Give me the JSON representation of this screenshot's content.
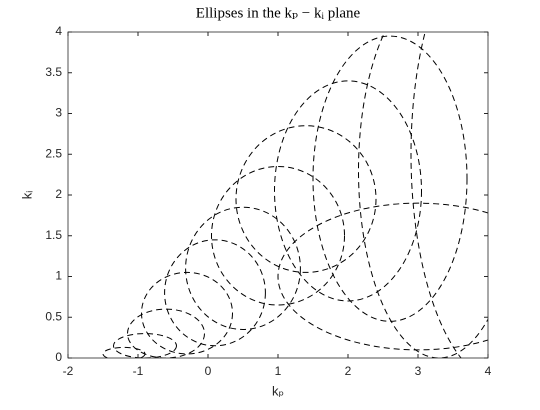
{
  "chart_data": {
    "type": "ellipse",
    "title": "Ellipses in the kₚ − kᵢ plane",
    "x_label": "kₚ",
    "y_label": "kᵢ",
    "xlim": [
      -2,
      4
    ],
    "xticks": [
      -2,
      -1,
      0,
      1,
      2,
      3,
      4
    ],
    "ylim": [
      0,
      4
    ],
    "yticks": [
      0,
      0.5,
      1,
      1.5,
      2,
      2.5,
      3,
      3.5,
      4
    ],
    "color": "#000000",
    "dashed": true,
    "grid": false,
    "ellipses": [
      {
        "cx": -1.2,
        "cy": 0.05,
        "rx": 0.3,
        "ry": 0.08
      },
      {
        "cx": -0.9,
        "cy": 0.15,
        "rx": 0.45,
        "ry": 0.15
      },
      {
        "cx": -0.6,
        "cy": 0.3,
        "rx": 0.55,
        "ry": 0.3
      },
      {
        "cx": -0.3,
        "cy": 0.55,
        "rx": 0.65,
        "ry": 0.5
      },
      {
        "cx": 0.1,
        "cy": 0.8,
        "rx": 0.72,
        "ry": 0.65
      },
      {
        "cx": 0.5,
        "cy": 1.1,
        "rx": 0.82,
        "ry": 0.75
      },
      {
        "cx": 1.0,
        "cy": 1.5,
        "rx": 0.95,
        "ry": 0.85
      },
      {
        "cx": 1.4,
        "cy": 1.95,
        "rx": 1.0,
        "ry": 0.9
      },
      {
        "cx": 2.0,
        "cy": 2.05,
        "rx": 1.05,
        "ry": 1.35
      },
      {
        "cx": 2.6,
        "cy": 2.2,
        "rx": 1.1,
        "ry": 1.75
      },
      {
        "cx": 3.3,
        "cy": 2.3,
        "rx": 1.15,
        "ry": 2.3
      },
      {
        "cx": 4.2,
        "cy": 2.5,
        "rx": 1.3,
        "ry": 2.8
      },
      {
        "cx": 3.0,
        "cy": 1.0,
        "rx": 2.0,
        "ry": 0.9
      }
    ]
  }
}
